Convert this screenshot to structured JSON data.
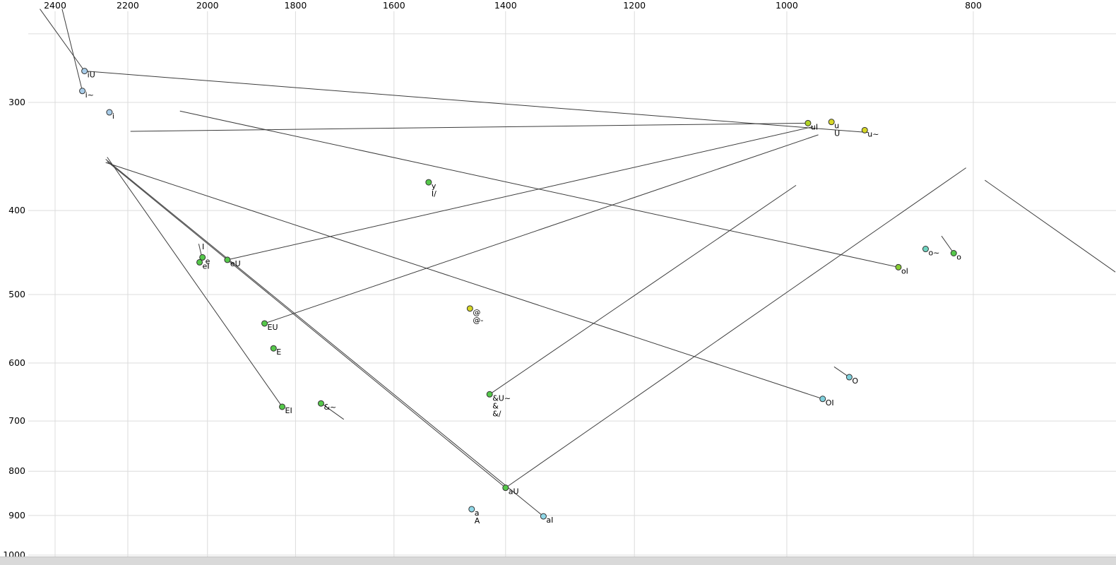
{
  "chart_data": {
    "type": "scatter",
    "title": "",
    "description": "Vowel formant plot: F2 on top x-axis (log scale, reversed), F1 on left y-axis (log scale, increasing downward). Diphthong trajectories drawn as line segments.",
    "x_axis": {
      "position": "top",
      "scale": "log",
      "reversed": true,
      "tick_values": [
        2400,
        2200,
        2000,
        1800,
        1600,
        1400,
        1200,
        1000,
        800
      ],
      "tick_labels": [
        "2400",
        "2200",
        "2000",
        "1800",
        "1600",
        "1400",
        "1200",
        "1000",
        "800"
      ]
    },
    "y_axis": {
      "position": "left",
      "scale": "log",
      "increases_downward": true,
      "tick_values": [
        300,
        400,
        500,
        600,
        700,
        800,
        900,
        1000
      ],
      "tick_labels": [
        "300",
        "400",
        "500",
        "600",
        "700",
        "800",
        "900",
        "1000"
      ],
      "extra_gridlines": [
        250
      ]
    },
    "grid": true,
    "points": [
      {
        "label": [
          "iU"
        ],
        "f2": 2317,
        "f1": 276,
        "fill": "#a8cce8"
      },
      {
        "label": [
          "i~"
        ],
        "f2": 2323,
        "f1": 291,
        "fill": "#a8cce8"
      },
      {
        "label": [
          "i"
        ],
        "f2": 2249,
        "f1": 308,
        "fill": "#a8cce8"
      },
      {
        "label": [
          "uI"
        ],
        "f2": 975,
        "f1": 317,
        "fill": "#b2d426"
      },
      {
        "label": [
          "u",
          "U"
        ],
        "f2": 948,
        "f1": 316,
        "fill": "#d6d626"
      },
      {
        "label": [
          "u~"
        ],
        "f2": 911,
        "f1": 323,
        "fill": "#d6d626"
      },
      {
        "label": [
          "y",
          "I/"
        ],
        "f2": 1535,
        "f1": 371,
        "fill": "#55c84a"
      },
      {
        "label": [
          "I"
        ],
        "f2": 2020,
        "f1": 436,
        "dot": false
      },
      {
        "label": [
          "e"
        ],
        "f2": 2012,
        "f1": 453,
        "fill": "#55c84a"
      },
      {
        "label": [
          "eI"
        ],
        "f2": 2019,
        "f1": 459,
        "fill": "#55c84a"
      },
      {
        "label": [
          "eU"
        ],
        "f2": 1953,
        "f1": 456,
        "fill": "#55c84a"
      },
      {
        "label": [
          "EU"
        ],
        "f2": 1868,
        "f1": 540,
        "fill": "#55c84a"
      },
      {
        "label": [
          "E"
        ],
        "f2": 1848,
        "f1": 577,
        "fill": "#55c84a"
      },
      {
        "label": [
          "EI"
        ],
        "f2": 1829,
        "f1": 674,
        "fill": "#55c84a"
      },
      {
        "label": [
          "&~"
        ],
        "f2": 1746,
        "f1": 668,
        "fill": "#55c84a"
      },
      {
        "label": [
          "@",
          "@-"
        ],
        "f2": 1461,
        "f1": 519,
        "fill": "#d6d626"
      },
      {
        "label": [
          "&U~",
          "&",
          "&/"
        ],
        "f2": 1427,
        "f1": 652,
        "fill": "#55c84a"
      },
      {
        "label": [
          "aU"
        ],
        "f2": 1400,
        "f1": 836,
        "fill": "#55c84a"
      },
      {
        "label": [
          "a",
          "A"
        ],
        "f2": 1458,
        "f1": 885,
        "fill": "#90d8e8"
      },
      {
        "label": [
          "aI"
        ],
        "f2": 1338,
        "f1": 902,
        "fill": "#90d8e8"
      },
      {
        "label": [
          "o~"
        ],
        "f2": 847,
        "f1": 443,
        "fill": "#6fd4c0"
      },
      {
        "label": [
          "o"
        ],
        "f2": 819,
        "f1": 448,
        "fill": "#55c84a"
      },
      {
        "label": [
          "oI"
        ],
        "f2": 875,
        "f1": 465,
        "fill": "#86cc33"
      },
      {
        "label": [
          "O"
        ],
        "f2": 928,
        "f1": 623,
        "fill": "#7fd0dc"
      },
      {
        "label": [
          "OI"
        ],
        "f2": 958,
        "f1": 660,
        "fill": "#7fd0dc"
      }
    ],
    "segments": [
      {
        "name": "iU-onset",
        "from": [
          2444,
          234
        ],
        "to": [
          2317,
          276
        ]
      },
      {
        "name": "i-nasal-onset",
        "from": [
          2380,
          234
        ],
        "to": [
          2323,
          291
        ]
      },
      {
        "name": "iU-glide",
        "from": [
          2317,
          276
        ],
        "to": [
          907,
          325
        ]
      },
      {
        "name": "uI-glide",
        "from": [
          975,
          317
        ],
        "to": [
          2193,
          324
        ]
      },
      {
        "name": "oI-glide",
        "from": [
          875,
          465
        ],
        "to": [
          2067,
          307
        ]
      },
      {
        "name": "aI-glide",
        "from": [
          1338,
          902
        ],
        "to": [
          2259,
          349
        ]
      },
      {
        "name": "EI-glide",
        "from": [
          1829,
          674
        ],
        "to": [
          2255,
          347
        ]
      },
      {
        "name": "OI-glide",
        "from": [
          958,
          660
        ],
        "to": [
          2259,
          352
        ]
      },
      {
        "name": "aU-glide",
        "from": [
          1400,
          836
        ],
        "to": [
          807,
          357
        ]
      },
      {
        "name": "aU-onset",
        "from": [
          2255,
          351
        ],
        "to": [
          1400,
          836
        ]
      },
      {
        "name": "eU-glide",
        "from": [
          1953,
          456
        ],
        "to": [
          969,
          320
        ]
      },
      {
        "name": "EU-glide",
        "from": [
          1868,
          540
        ],
        "to": [
          963,
          327
        ]
      },
      {
        "name": "schwa-U-glide",
        "from": [
          1427,
          652
        ],
        "to": [
          989,
          374
        ]
      },
      {
        "name": "eI-glide",
        "from": [
          2012,
          456
        ],
        "to": [
          2021,
          437
        ]
      },
      {
        "name": "o-nasal-tail",
        "from": [
          831,
          428
        ],
        "to": [
          819,
          448
        ]
      },
      {
        "name": "O-tail",
        "from": [
          945,
          606
        ],
        "to": [
          928,
          623
        ]
      },
      {
        "name": "ae-nasal-tail",
        "from": [
          1750,
          665
        ],
        "to": [
          1699,
          697
        ]
      },
      {
        "name": "right-edge-segment",
        "from": [
          789,
          369
        ],
        "to": [
          675,
          471
        ]
      }
    ]
  },
  "colors": {
    "background": "#ffffff",
    "grid": "#dcdcdc",
    "segment": "#3c3c3c",
    "dot_stroke": "#333333",
    "text": "#000000",
    "bottom_bar": "#d9d9d9"
  }
}
